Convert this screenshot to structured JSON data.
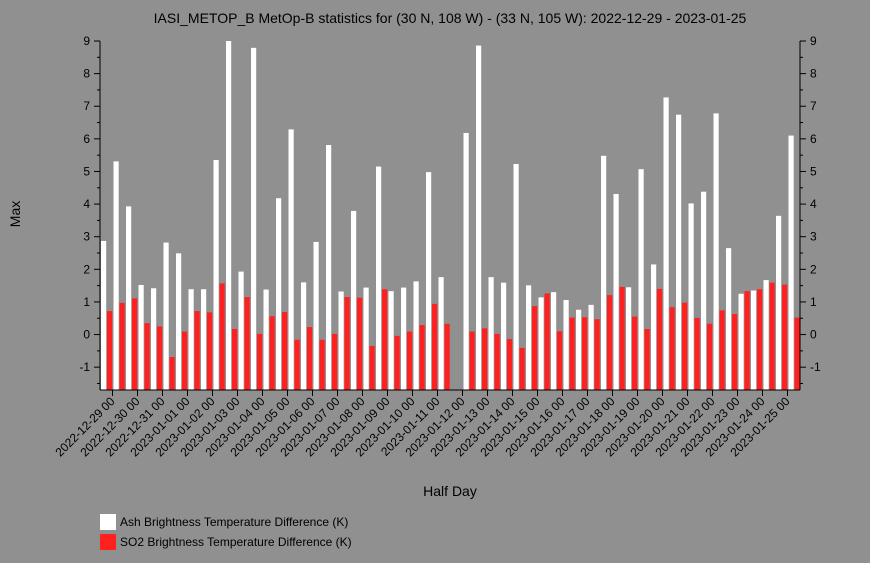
{
  "chart_data": {
    "type": "bar",
    "title": "IASI_METOP_B MetOp-B statistics for (30 N, 108 W) - (33 N, 105 W): 2022-12-29 - 2023-01-25",
    "xlabel": "Half Day",
    "ylabel": "Max",
    "ylim": [
      -1.7,
      9.0
    ],
    "yticks": [
      -1,
      0,
      1,
      2,
      3,
      4,
      5,
      6,
      7,
      8,
      9
    ],
    "xtick_labels": [
      "2022-12-29 00",
      "2022-12-30 00",
      "2022-12-31 00",
      "2023-01-01 00",
      "2023-01-02 00",
      "2023-01-03 00",
      "2023-01-04 00",
      "2023-01-05 00",
      "2023-01-06 00",
      "2023-01-07 00",
      "2023-01-08 00",
      "2023-01-09 00",
      "2023-01-10 00",
      "2023-01-11 00",
      "2023-01-12 00",
      "2023-01-13 00",
      "2023-01-14 00",
      "2023-01-15 00",
      "2023-01-16 00",
      "2023-01-17 00",
      "2023-01-18 00",
      "2023-01-19 00",
      "2023-01-20 00",
      "2023-01-21 00",
      "2023-01-22 00",
      "2023-01-23 00",
      "2023-01-24 00",
      "2023-01-25 00"
    ],
    "colors": {
      "ash": "#ffffff",
      "so2": "#ff2020",
      "background": "#909090"
    },
    "series": [
      {
        "name": "Ash Brightness Temperature Difference (K)",
        "values": [
          2.87,
          5.31,
          3.93,
          1.52,
          1.42,
          2.82,
          2.49,
          1.39,
          1.39,
          5.35,
          9.0,
          1.93,
          8.79,
          1.38,
          4.18,
          6.29,
          1.6,
          2.84,
          5.81,
          1.32,
          3.79,
          1.44,
          5.15,
          1.33,
          1.44,
          1.63,
          4.98,
          1.76,
          null,
          6.18,
          8.86,
          1.76,
          1.59,
          5.23,
          1.51,
          1.14,
          1.3,
          1.06,
          0.76,
          0.91,
          5.48,
          4.31,
          1.45,
          5.07,
          2.15,
          7.27,
          6.74,
          4.02,
          4.38,
          6.78,
          2.65,
          1.25,
          1.35,
          1.67,
          3.64,
          6.1
        ]
      },
      {
        "name": "SO2 Brightness Temperature Difference (K)",
        "values": [
          0.72,
          0.97,
          1.11,
          0.35,
          0.25,
          -0.69,
          0.09,
          0.72,
          0.68,
          1.57,
          0.17,
          1.15,
          0.02,
          0.56,
          0.69,
          -0.16,
          0.23,
          -0.16,
          0.02,
          1.15,
          1.13,
          -0.35,
          1.39,
          -0.04,
          0.09,
          0.29,
          0.94,
          0.33,
          null,
          0.09,
          0.19,
          0.02,
          -0.14,
          -0.41,
          0.87,
          1.26,
          0.1,
          0.52,
          0.53,
          0.47,
          1.21,
          1.46,
          0.55,
          0.17,
          1.4,
          0.84,
          0.98,
          0.51,
          0.33,
          0.74,
          0.63,
          1.33,
          1.39,
          1.59,
          1.53,
          0.52
        ]
      }
    ]
  }
}
